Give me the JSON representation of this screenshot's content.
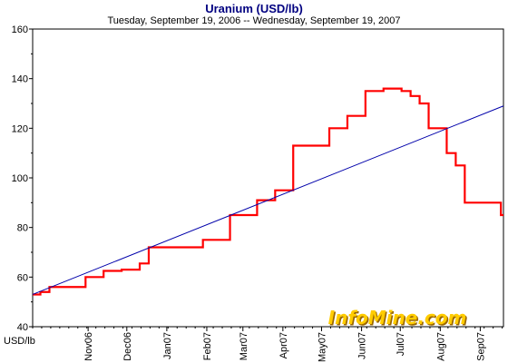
{
  "chart_data": {
    "type": "line",
    "title": "Uranium (USD/lb)",
    "subtitle": "Tuesday, September 19, 2006  --  Wednesday, September 19, 2007",
    "ylabel": "USD/lb",
    "xlabel": "",
    "ylim": [
      40,
      160
    ],
    "yticks": [
      40,
      60,
      80,
      100,
      120,
      140,
      160
    ],
    "x_range": [
      "2006-09-19",
      "2007-09-19"
    ],
    "xticks": [
      {
        "label": "Nov06",
        "date": "2006-11-01"
      },
      {
        "label": "Dec06",
        "date": "2006-12-01"
      },
      {
        "label": "Jan07",
        "date": "2007-01-01"
      },
      {
        "label": "Feb07",
        "date": "2007-02-01"
      },
      {
        "label": "Mar07",
        "date": "2007-03-01"
      },
      {
        "label": "Apr07",
        "date": "2007-04-01"
      },
      {
        "label": "May07",
        "date": "2007-05-01"
      },
      {
        "label": "Jun07",
        "date": "2007-06-01"
      },
      {
        "label": "Jul07",
        "date": "2007-07-01"
      },
      {
        "label": "Aug07",
        "date": "2007-08-01"
      },
      {
        "label": "Sep07",
        "date": "2007-09-01"
      }
    ],
    "grid": false,
    "series": [
      {
        "color": "#ff0000",
        "style": "step",
        "points": [
          {
            "x": "2006-09-19",
            "y": 53
          },
          {
            "x": "2006-09-25",
            "y": 54
          },
          {
            "x": "2006-10-02",
            "y": 56
          },
          {
            "x": "2006-10-30",
            "y": 60
          },
          {
            "x": "2006-11-13",
            "y": 62.5
          },
          {
            "x": "2006-11-27",
            "y": 63
          },
          {
            "x": "2006-12-11",
            "y": 65.5
          },
          {
            "x": "2006-12-18",
            "y": 72
          },
          {
            "x": "2007-01-29",
            "y": 75
          },
          {
            "x": "2007-02-19",
            "y": 85
          },
          {
            "x": "2007-03-12",
            "y": 91
          },
          {
            "x": "2007-03-26",
            "y": 95
          },
          {
            "x": "2007-04-09",
            "y": 113
          },
          {
            "x": "2007-05-07",
            "y": 120
          },
          {
            "x": "2007-05-21",
            "y": 125
          },
          {
            "x": "2007-06-04",
            "y": 135
          },
          {
            "x": "2007-06-18",
            "y": 136
          },
          {
            "x": "2007-07-02",
            "y": 135
          },
          {
            "x": "2007-07-09",
            "y": 133
          },
          {
            "x": "2007-07-16",
            "y": 130
          },
          {
            "x": "2007-07-23",
            "y": 120
          },
          {
            "x": "2007-08-06",
            "y": 110
          },
          {
            "x": "2007-08-13",
            "y": 105
          },
          {
            "x": "2007-08-20",
            "y": 90
          },
          {
            "x": "2007-09-17",
            "y": 85
          },
          {
            "x": "2007-09-19",
            "y": 85
          }
        ]
      },
      {
        "color": "#0000aa",
        "style": "trend",
        "points": [
          {
            "x": "2006-09-19",
            "y": 53
          },
          {
            "x": "2007-09-19",
            "y": 129
          }
        ]
      }
    ]
  },
  "watermark": {
    "text": "InfoMine.com",
    "color": "#ffcc00",
    "shadow": "#996600"
  }
}
